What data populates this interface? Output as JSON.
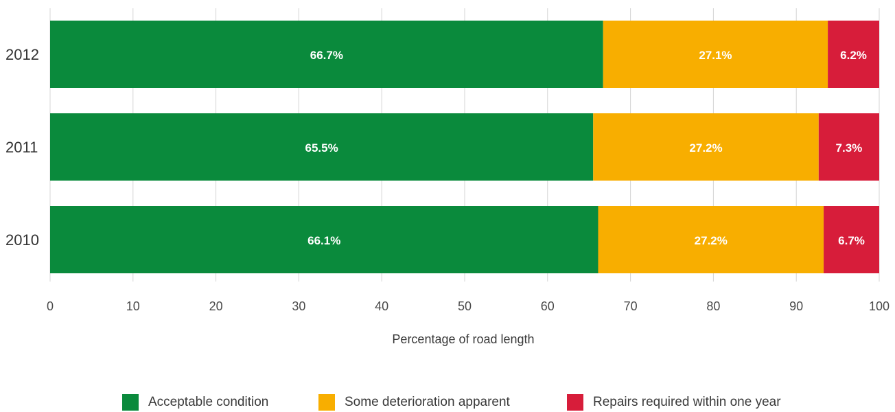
{
  "chart_data": {
    "type": "bar",
    "orientation": "horizontal",
    "stacked": true,
    "categories": [
      "2012",
      "2011",
      "2010"
    ],
    "series": [
      {
        "name": "Acceptable condition",
        "color": "#0a8a3c",
        "values": [
          66.7,
          65.5,
          66.1
        ],
        "labels": [
          "66.7%",
          "65.5%",
          "66.1%"
        ]
      },
      {
        "name": "Some deterioration apparent",
        "color": "#f8ae00",
        "values": [
          27.1,
          27.2,
          27.2
        ],
        "labels": [
          "27.1%",
          "27.2%",
          "27.2%"
        ]
      },
      {
        "name": "Repairs required within one year",
        "color": "#d71d3a",
        "values": [
          6.2,
          7.3,
          6.7
        ],
        "labels": [
          "6.2%",
          "7.3%",
          "6.7%"
        ]
      }
    ],
    "xlabel": "Percentage of road length",
    "ylabel": "",
    "xlim": [
      0,
      100
    ],
    "xticks": [
      0,
      10,
      20,
      30,
      40,
      50,
      60,
      70,
      80,
      90,
      100
    ],
    "grid": true,
    "legend_position": "bottom"
  }
}
